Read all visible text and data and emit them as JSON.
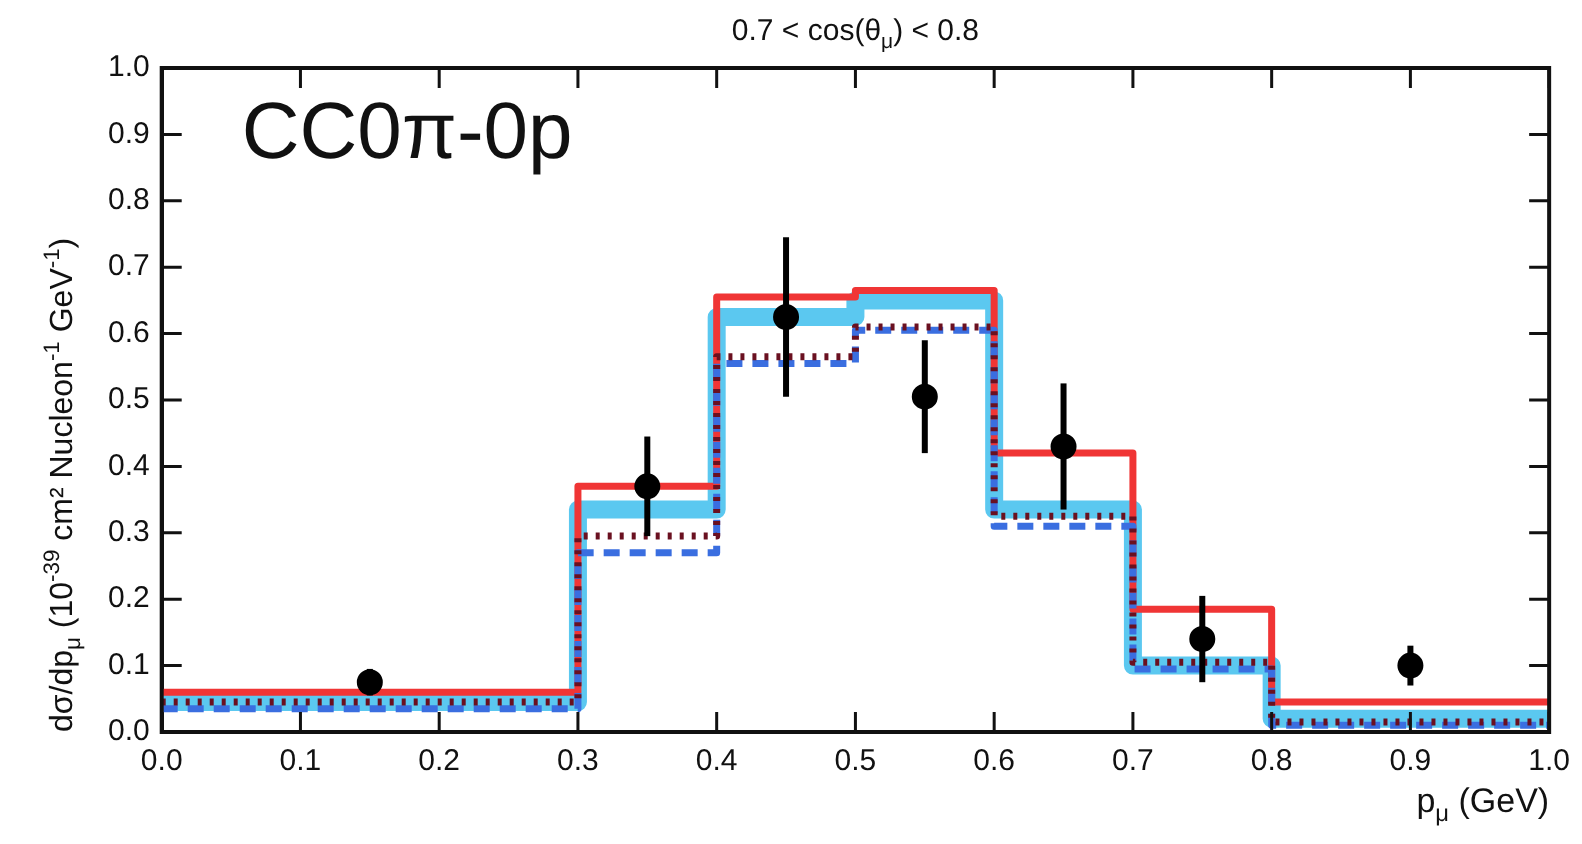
{
  "chart_data": {
    "type": "step",
    "title": "0.7 < cos(θ$_{μ}$) < 0.8",
    "xlabel": "p$_{μ}$ (GeV)",
    "ylabel": "dσ/dp$_{μ}$ (10$^{-39}$ cm² Nucleon$^{-1}$ GeV$^{-1}$)",
    "annotations": [
      "CC0π-0p"
    ],
    "xlim": [
      0,
      1
    ],
    "ylim": [
      0,
      1
    ],
    "xticks": [
      {
        "value": 0,
        "label": "0.0"
      },
      {
        "value": 0.1,
        "label": "0.1"
      },
      {
        "value": 0.2,
        "label": "0.2"
      },
      {
        "value": 0.3,
        "label": "0.3"
      },
      {
        "value": 0.4,
        "label": "0.4"
      },
      {
        "value": 0.5,
        "label": "0.5"
      },
      {
        "value": 0.6,
        "label": "0.6"
      },
      {
        "value": 0.7,
        "label": "0.7"
      },
      {
        "value": 0.8,
        "label": "0.8"
      },
      {
        "value": 0.9,
        "label": "0.9"
      },
      {
        "value": 1,
        "label": "1.0"
      }
    ],
    "yticks": [
      {
        "value": 0,
        "label": "0.0"
      },
      {
        "value": 0.1,
        "label": "0.1"
      },
      {
        "value": 0.2,
        "label": "0.2"
      },
      {
        "value": 0.3,
        "label": "0.3"
      },
      {
        "value": 0.4,
        "label": "0.4"
      },
      {
        "value": 0.5,
        "label": "0.5"
      },
      {
        "value": 0.6,
        "label": "0.6"
      },
      {
        "value": 0.7,
        "label": "0.7"
      },
      {
        "value": 0.8,
        "label": "0.8"
      },
      {
        "value": 0.9,
        "label": "0.9"
      },
      {
        "value": 1,
        "label": "1.0"
      }
    ],
    "grid": false,
    "legend": false,
    "series": [
      {
        "color": "#5bc8f0",
        "x": [
          0,
          0.3,
          0.4,
          0.5,
          0.6,
          0.7,
          0.8,
          1
        ],
        "values": [
          0.045,
          0.335,
          0.625,
          0.65,
          0.335,
          0.1,
          0.02,
          0.02
        ]
      },
      {
        "color": "#f03535",
        "x": [
          0,
          0.3,
          0.4,
          0.5,
          0.6,
          0.7,
          0.8,
          1
        ],
        "values": [
          0.06,
          0.37,
          0.655,
          0.665,
          0.42,
          0.185,
          0.045,
          0.045
        ],
        "line_style": "solid"
      },
      {
        "color": "#3a6ee0",
        "x": [
          0,
          0.3,
          0.4,
          0.5,
          0.6,
          0.7,
          0.8,
          1
        ],
        "values": [
          0.035,
          0.27,
          0.555,
          0.605,
          0.31,
          0.095,
          0.01,
          0.01
        ],
        "line_style": "dashed"
      },
      {
        "color": "#6a1020",
        "x": [
          0,
          0.3,
          0.4,
          0.5,
          0.6,
          0.7,
          0.8,
          1
        ],
        "values": [
          0.045,
          0.295,
          0.565,
          0.61,
          0.325,
          0.105,
          0.015,
          0.015
        ],
        "line_style": "dotted"
      },
      {
        "type": "scatter",
        "color": "#000000",
        "marker": "circle",
        "x": [
          0.15,
          0.35,
          0.45,
          0.55,
          0.65,
          0.75,
          0.9
        ],
        "values": [
          0.075,
          0.37,
          0.625,
          0.505,
          0.43,
          0.14,
          0.1
        ],
        "errors": [
          0.02,
          0.075,
          0.12,
          0.085,
          0.095,
          0.065,
          0.03
        ]
      }
    ]
  }
}
